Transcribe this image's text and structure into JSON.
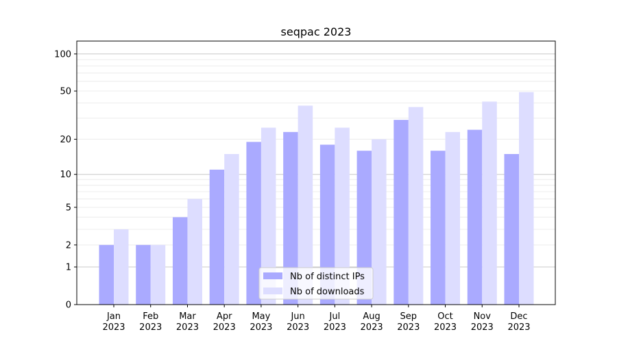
{
  "chart_data": {
    "type": "bar",
    "title": "seqpac 2023",
    "xlabel": "",
    "ylabel": "",
    "yscale": "log(1+x)",
    "ylim": [
      0,
      127
    ],
    "yticks": [
      0,
      1,
      2,
      5,
      10,
      20,
      50,
      100
    ],
    "grid": true,
    "legend_position": "bottom-center",
    "categories": [
      "Jan\n2023",
      "Feb\n2023",
      "Mar\n2023",
      "Apr\n2023",
      "May\n2023",
      "Jun\n2023",
      "Jul\n2023",
      "Aug\n2023",
      "Sep\n2023",
      "Oct\n2023",
      "Nov\n2023",
      "Dec\n2023"
    ],
    "series": [
      {
        "name": "Nb of distinct IPs",
        "color": "#aaaaff",
        "values": [
          2,
          2,
          4,
          11,
          19,
          23,
          18,
          16,
          29,
          16,
          24,
          15
        ]
      },
      {
        "name": "Nb of downloads",
        "color": "#ddddff",
        "values": [
          3,
          2,
          6,
          15,
          25,
          38,
          25,
          20,
          37,
          23,
          41,
          49
        ]
      }
    ]
  }
}
